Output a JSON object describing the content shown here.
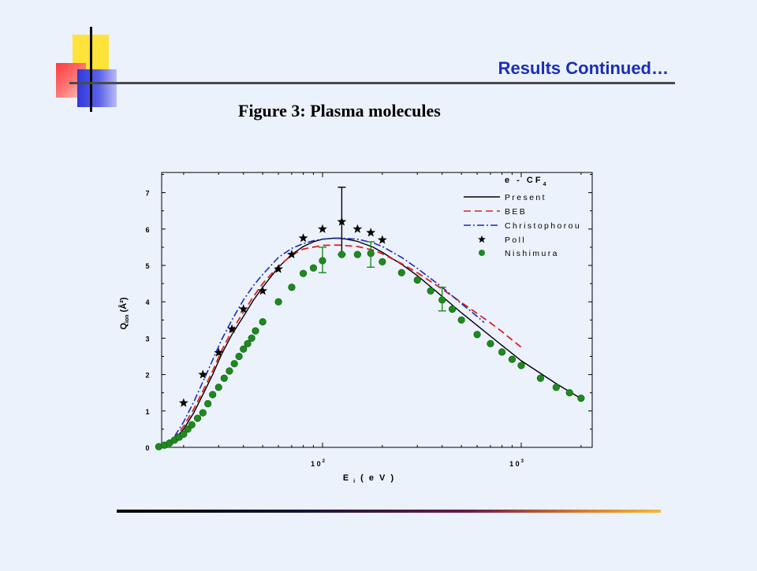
{
  "slide": {
    "title": "Results Continued…",
    "caption": "Figure 3: Plasma molecules"
  },
  "colors": {
    "background": "#ECF2FC",
    "title": "#1A2EB8",
    "present": "#000000",
    "beb": "#E02020",
    "christophorou": "#1C2BB8",
    "poll": "#000000",
    "nishimura": "#1E8A1E"
  },
  "chart_data": {
    "type": "line",
    "title": "",
    "xlabel": "E i (eV)",
    "ylabel": "Q ion (Å²)",
    "xscale": "log",
    "xlim": [
      13,
      2000
    ],
    "ylim": [
      0,
      7.5
    ],
    "x_tick_labels": [
      "10^2",
      "10^3"
    ],
    "y_tick_labels": [
      "0",
      "1",
      "2",
      "3",
      "4",
      "5",
      "6",
      "7"
    ],
    "legend": {
      "title": "e - CF4",
      "position": "top-right",
      "entries": [
        "Present",
        "BEB",
        "Christophorou",
        "Poll",
        "Nishimura"
      ]
    },
    "series": [
      {
        "name": "Present",
        "style": "solid",
        "points": [
          [
            16,
            0.05
          ],
          [
            18,
            0.22
          ],
          [
            20,
            0.5
          ],
          [
            22.5,
            0.95
          ],
          [
            25,
            1.45
          ],
          [
            28,
            2.0
          ],
          [
            31,
            2.55
          ],
          [
            35,
            3.1
          ],
          [
            40,
            3.6
          ],
          [
            45,
            4.05
          ],
          [
            50,
            4.4
          ],
          [
            60,
            4.95
          ],
          [
            70,
            5.3
          ],
          [
            80,
            5.52
          ],
          [
            90,
            5.65
          ],
          [
            100,
            5.72
          ],
          [
            115,
            5.75
          ],
          [
            130,
            5.73
          ],
          [
            150,
            5.66
          ],
          [
            180,
            5.5
          ],
          [
            200,
            5.36
          ],
          [
            250,
            5.03
          ],
          [
            300,
            4.72
          ],
          [
            400,
            4.15
          ],
          [
            500,
            3.7
          ],
          [
            600,
            3.35
          ],
          [
            800,
            2.8
          ],
          [
            1000,
            2.38
          ],
          [
            1500,
            1.75
          ],
          [
            2000,
            1.34
          ]
        ]
      },
      {
        "name": "BEB",
        "style": "dashed",
        "points": [
          [
            16,
            0.06
          ],
          [
            18,
            0.25
          ],
          [
            20,
            0.58
          ],
          [
            22.5,
            1.05
          ],
          [
            25,
            1.55
          ],
          [
            28,
            2.1
          ],
          [
            31,
            2.65
          ],
          [
            35,
            3.2
          ],
          [
            40,
            3.72
          ],
          [
            45,
            4.15
          ],
          [
            50,
            4.5
          ],
          [
            60,
            4.98
          ],
          [
            70,
            5.28
          ],
          [
            80,
            5.45
          ],
          [
            100,
            5.55
          ],
          [
            120,
            5.56
          ],
          [
            150,
            5.52
          ],
          [
            180,
            5.42
          ],
          [
            200,
            5.32
          ],
          [
            250,
            5.05
          ],
          [
            300,
            4.8
          ],
          [
            400,
            4.35
          ],
          [
            500,
            3.98
          ],
          [
            600,
            3.68
          ],
          [
            700,
            3.42
          ],
          [
            800,
            3.18
          ],
          [
            900,
            2.95
          ],
          [
            1000,
            2.75
          ]
        ]
      },
      {
        "name": "Christophorou",
        "style": "dashdot",
        "points": [
          [
            16,
            0.08
          ],
          [
            18,
            0.3
          ],
          [
            20,
            0.7
          ],
          [
            22.5,
            1.25
          ],
          [
            25,
            1.8
          ],
          [
            28,
            2.4
          ],
          [
            31,
            2.95
          ],
          [
            35,
            3.5
          ],
          [
            40,
            4.05
          ],
          [
            45,
            4.45
          ],
          [
            50,
            4.75
          ],
          [
            60,
            5.22
          ],
          [
            70,
            5.47
          ],
          [
            80,
            5.6
          ],
          [
            90,
            5.68
          ],
          [
            100,
            5.72
          ],
          [
            120,
            5.75
          ],
          [
            150,
            5.72
          ],
          [
            180,
            5.62
          ],
          [
            200,
            5.52
          ],
          [
            250,
            5.22
          ],
          [
            300,
            4.92
          ],
          [
            400,
            4.4
          ],
          [
            500,
            3.95
          ],
          [
            600,
            3.6
          ],
          [
            650,
            3.43
          ]
        ]
      },
      {
        "name": "Poll",
        "style": "star",
        "points": [
          [
            20,
            1.22
          ],
          [
            25,
            2.0
          ],
          [
            30,
            2.6
          ],
          [
            35,
            3.25
          ],
          [
            40,
            3.8
          ],
          [
            50,
            4.3
          ],
          [
            60,
            4.9
          ],
          [
            70,
            5.3
          ],
          [
            80,
            5.75
          ],
          [
            100,
            6.0
          ],
          [
            125,
            6.2
          ],
          [
            150,
            6.0
          ],
          [
            175,
            5.9
          ],
          [
            200,
            5.7
          ]
        ],
        "error_bars": [
          {
            "x": 125,
            "low": 5.3,
            "high": 7.15
          }
        ]
      },
      {
        "name": "Nishimura",
        "style": "dot",
        "points": [
          [
            15,
            0.02
          ],
          [
            16,
            0.06
          ],
          [
            17,
            0.12
          ],
          [
            18,
            0.2
          ],
          [
            19,
            0.28
          ],
          [
            20,
            0.36
          ],
          [
            21,
            0.5
          ],
          [
            22,
            0.62
          ],
          [
            23.5,
            0.8
          ],
          [
            25,
            0.95
          ],
          [
            26.5,
            1.2
          ],
          [
            28,
            1.45
          ],
          [
            30,
            1.65
          ],
          [
            32,
            1.9
          ],
          [
            34,
            2.1
          ],
          [
            36,
            2.3
          ],
          [
            38,
            2.5
          ],
          [
            40,
            2.7
          ],
          [
            42,
            2.85
          ],
          [
            44,
            3.0
          ],
          [
            46,
            3.2
          ],
          [
            50,
            3.45
          ],
          [
            60,
            4.0
          ],
          [
            70,
            4.4
          ],
          [
            80,
            4.78
          ],
          [
            90,
            4.93
          ],
          [
            100,
            5.13
          ],
          [
            125,
            5.3
          ],
          [
            150,
            5.3
          ],
          [
            175,
            5.33
          ],
          [
            200,
            5.1
          ],
          [
            250,
            4.8
          ],
          [
            300,
            4.6
          ],
          [
            350,
            4.3
          ],
          [
            400,
            4.05
          ],
          [
            450,
            3.8
          ],
          [
            500,
            3.5
          ],
          [
            600,
            3.1
          ],
          [
            700,
            2.85
          ],
          [
            800,
            2.62
          ],
          [
            900,
            2.42
          ],
          [
            1000,
            2.25
          ],
          [
            1250,
            1.9
          ],
          [
            1500,
            1.65
          ],
          [
            1750,
            1.5
          ],
          [
            2000,
            1.35
          ]
        ],
        "error_bars": [
          {
            "x": 100,
            "low": 4.8,
            "high": 5.5
          },
          {
            "x": 175,
            "low": 4.95,
            "high": 5.65
          },
          {
            "x": 400,
            "low": 3.75,
            "high": 4.4
          }
        ]
      }
    ]
  }
}
